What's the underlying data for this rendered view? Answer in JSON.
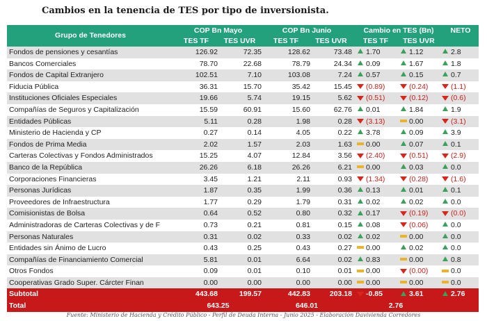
{
  "title": "Cambios en la tenencia de TES por tipo de inversionista.",
  "header": {
    "group": "Grupo de Tenedores",
    "mayo": "COP Bn Mayo",
    "junio": "COP Bn Junio",
    "cambio": "Cambio en TES (Bn)",
    "neto": "NETO",
    "tf": "TES TF",
    "uvr": "TES UVR"
  },
  "rows": [
    {
      "name": "Fondos de pensiones y cesantías",
      "tf_may": "126.92",
      "uvr_may": "72.35",
      "tf_jun": "128.62",
      "uvr_jun": "73.48",
      "ch_tf": "1.70",
      "ch_tf_dir": "up",
      "ch_uvr": "1.12",
      "ch_uvr_dir": "up",
      "neto": "2.8",
      "neto_dir": "up"
    },
    {
      "name": "Bancos Comerciales",
      "tf_may": "78.70",
      "uvr_may": "22.68",
      "tf_jun": "78.79",
      "uvr_jun": "24.34",
      "ch_tf": "0.09",
      "ch_tf_dir": "up",
      "ch_uvr": "1.67",
      "ch_uvr_dir": "up",
      "neto": "1.8",
      "neto_dir": "up"
    },
    {
      "name": "Fondos de Capital Extranjero",
      "tf_may": "102.51",
      "uvr_may": "7.10",
      "tf_jun": "103.08",
      "uvr_jun": "7.24",
      "ch_tf": "0.57",
      "ch_tf_dir": "up",
      "ch_uvr": "0.15",
      "ch_uvr_dir": "up",
      "neto": "0.7",
      "neto_dir": "up"
    },
    {
      "name": "Fiducia Pública",
      "tf_may": "36.31",
      "uvr_may": "15.70",
      "tf_jun": "35.42",
      "uvr_jun": "15.45",
      "ch_tf": "(0.89)",
      "ch_tf_dir": "down",
      "ch_uvr": "(0.24)",
      "ch_uvr_dir": "down",
      "neto": "(1.1)",
      "neto_dir": "down"
    },
    {
      "name": "Instituciones Oficiales Especiales",
      "tf_may": "19.66",
      "uvr_may": "5.74",
      "tf_jun": "19.15",
      "uvr_jun": "5.62",
      "ch_tf": "(0.51)",
      "ch_tf_dir": "down",
      "ch_uvr": "(0.12)",
      "ch_uvr_dir": "down",
      "neto": "(0.6)",
      "neto_dir": "down"
    },
    {
      "name": "Compañías de Seguros y Capitalización",
      "tf_may": "15.59",
      "uvr_may": "60.91",
      "tf_jun": "15.60",
      "uvr_jun": "62.76",
      "ch_tf": "0.01",
      "ch_tf_dir": "up",
      "ch_uvr": "1.84",
      "ch_uvr_dir": "up",
      "neto": "1.9",
      "neto_dir": "up"
    },
    {
      "name": "Entidades Públicas",
      "tf_may": "5.11",
      "uvr_may": "0.28",
      "tf_jun": "1.98",
      "uvr_jun": "0.28",
      "ch_tf": "(3.13)",
      "ch_tf_dir": "down",
      "ch_uvr": "0.00",
      "ch_uvr_dir": "flat",
      "neto": "(3.1)",
      "neto_dir": "down"
    },
    {
      "name": "Ministerio de Hacienda y CP",
      "tf_may": "0.27",
      "uvr_may": "0.14",
      "tf_jun": "4.05",
      "uvr_jun": "0.22",
      "ch_tf": "3.78",
      "ch_tf_dir": "up",
      "ch_uvr": "0.09",
      "ch_uvr_dir": "up",
      "neto": "3.9",
      "neto_dir": "up"
    },
    {
      "name": "Fondos de Prima Media",
      "tf_may": "2.02",
      "uvr_may": "1.57",
      "tf_jun": "2.03",
      "uvr_jun": "1.63",
      "ch_tf": "0.00",
      "ch_tf_dir": "flat",
      "ch_uvr": "0.07",
      "ch_uvr_dir": "up",
      "neto": "0.1",
      "neto_dir": "up"
    },
    {
      "name": "Carteras Colectivas y Fondos Administrados",
      "tf_may": "15.25",
      "uvr_may": "4.07",
      "tf_jun": "12.84",
      "uvr_jun": "3.56",
      "ch_tf": "(2.40)",
      "ch_tf_dir": "down",
      "ch_uvr": "(0.51)",
      "ch_uvr_dir": "down",
      "neto": "(2.9)",
      "neto_dir": "down"
    },
    {
      "name": "Banco de la República",
      "tf_may": "26.26",
      "uvr_may": "6.18",
      "tf_jun": "26.26",
      "uvr_jun": "6.21",
      "ch_tf": "0.00",
      "ch_tf_dir": "flat",
      "ch_uvr": "0.03",
      "ch_uvr_dir": "up",
      "neto": "0.0",
      "neto_dir": "up"
    },
    {
      "name": "Corporaciones Financieras",
      "tf_may": "3.45",
      "uvr_may": "1.21",
      "tf_jun": "2.11",
      "uvr_jun": "0.93",
      "ch_tf": "(1.34)",
      "ch_tf_dir": "down",
      "ch_uvr": "(0.28)",
      "ch_uvr_dir": "down",
      "neto": "(1.6)",
      "neto_dir": "down"
    },
    {
      "name": "Personas Jurídicas",
      "tf_may": "1.87",
      "uvr_may": "0.35",
      "tf_jun": "1.99",
      "uvr_jun": "0.36",
      "ch_tf": "0.13",
      "ch_tf_dir": "up",
      "ch_uvr": "0.01",
      "ch_uvr_dir": "up",
      "neto": "0.1",
      "neto_dir": "up"
    },
    {
      "name": "Proveedores de Infraestructura",
      "tf_may": "1.77",
      "uvr_may": "0.29",
      "tf_jun": "1.79",
      "uvr_jun": "0.31",
      "ch_tf": "0.02",
      "ch_tf_dir": "up",
      "ch_uvr": "0.02",
      "ch_uvr_dir": "up",
      "neto": "0.0",
      "neto_dir": "up"
    },
    {
      "name": "Comisionistas de Bolsa",
      "tf_may": "0.64",
      "uvr_may": "0.52",
      "tf_jun": "0.80",
      "uvr_jun": "0.32",
      "ch_tf": "0.17",
      "ch_tf_dir": "up",
      "ch_uvr": "(0.19)",
      "ch_uvr_dir": "down",
      "neto": "(0.0)",
      "neto_dir": "down"
    },
    {
      "name": "Administradoras de Carteras Colectivas y de F",
      "tf_may": "0.73",
      "uvr_may": "0.21",
      "tf_jun": "0.81",
      "uvr_jun": "0.15",
      "ch_tf": "0.08",
      "ch_tf_dir": "up",
      "ch_uvr": "(0.06)",
      "ch_uvr_dir": "down",
      "neto": "0.0",
      "neto_dir": "up"
    },
    {
      "name": "Personas Naturales",
      "tf_may": "0.31",
      "uvr_may": "0.02",
      "tf_jun": "0.33",
      "uvr_jun": "0.02",
      "ch_tf": "0.02",
      "ch_tf_dir": "up",
      "ch_uvr": "0.00",
      "ch_uvr_dir": "flat",
      "neto": "0.0",
      "neto_dir": "up"
    },
    {
      "name": "Entidades sin Ánimo de Lucro",
      "tf_may": "0.43",
      "uvr_may": "0.25",
      "tf_jun": "0.43",
      "uvr_jun": "0.27",
      "ch_tf": "0.00",
      "ch_tf_dir": "flat",
      "ch_uvr": "0.02",
      "ch_uvr_dir": "up",
      "neto": "0.0",
      "neto_dir": "up"
    },
    {
      "name": "Compañías de Financiamiento Comercial",
      "tf_may": "5.81",
      "uvr_may": "0.01",
      "tf_jun": "6.64",
      "uvr_jun": "0.02",
      "ch_tf": "0.83",
      "ch_tf_dir": "up",
      "ch_uvr": "0.00",
      "ch_uvr_dir": "flat",
      "neto": "0.8",
      "neto_dir": "up"
    },
    {
      "name": "Otros Fondos",
      "tf_may": "0.09",
      "uvr_may": "0.01",
      "tf_jun": "0.10",
      "uvr_jun": "0.01",
      "ch_tf": "0.00",
      "ch_tf_dir": "flat",
      "ch_uvr": "(0.00)",
      "ch_uvr_dir": "down",
      "neto": "0.0",
      "neto_dir": "flat"
    },
    {
      "name": "Cooperativas Grado Super. Cárcter Finan",
      "tf_may": "0.00",
      "uvr_may": "0.00",
      "tf_jun": "0.00",
      "uvr_jun": "0.00",
      "ch_tf": "0.00",
      "ch_tf_dir": "flat",
      "ch_uvr": "0.00",
      "ch_uvr_dir": "flat",
      "neto": "0.0",
      "neto_dir": "flat"
    }
  ],
  "subtotal": {
    "label": "Subtotal",
    "tf_may": "443.68",
    "uvr_may": "199.57",
    "tf_jun": "442.83",
    "uvr_jun": "203.18",
    "ch_tf": "-0.85",
    "ch_tf_dir": "down",
    "ch_uvr": "3.61",
    "ch_uvr_dir": "up",
    "neto": "2.76",
    "neto_dir": "up"
  },
  "total": {
    "label": "Total",
    "mayo": "643.25",
    "junio": "646.01",
    "cambio": "2.76"
  },
  "source": "Fuente: Ministerio de Hacienda y Crédito Público -  Perfil de Deuda Interna - Junio 2025 - Elaboración Davivienda Corredores",
  "colors": {
    "header": "#23a17d",
    "total": "#c8191a",
    "up": "#3aa05a",
    "down": "#d9261c",
    "flat": "#e9b429",
    "stripe": "#e1e1e1"
  },
  "icons": {
    "up": "triangle-up-icon",
    "down": "triangle-down-icon",
    "flat": "dash-icon"
  }
}
